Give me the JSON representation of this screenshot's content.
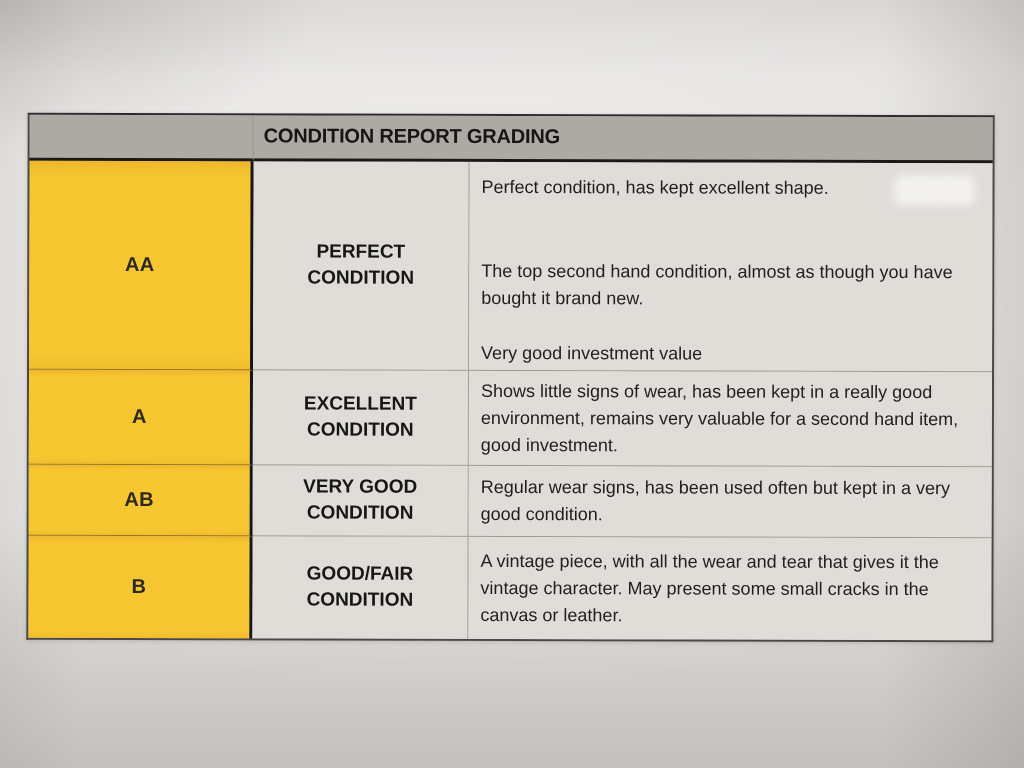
{
  "document": {
    "type": "photographed-printed-table",
    "table": {
      "title": "CONDITION REPORT GRADING",
      "columns": [
        "grade",
        "condition_name",
        "description"
      ],
      "rows": [
        {
          "grade": "AA",
          "label_lines": [
            "PERFECT",
            "CONDITION"
          ],
          "paragraphs": [
            "Perfect condition, has kept excellent shape.",
            "The top second hand condition, almost as though you have bought it brand new.",
            "Very good investment value"
          ]
        },
        {
          "grade": "A",
          "label_lines": [
            "EXCELLENT",
            "CONDITION"
          ],
          "paragraphs": [
            "Shows little signs of wear, has been kept in a really good environment, remains very valuable for a second hand item, good investment."
          ]
        },
        {
          "grade": "AB",
          "label_lines": [
            "VERY GOOD",
            "CONDITION"
          ],
          "paragraphs": [
            "Regular wear signs, has been used often but kept in a very good condition."
          ]
        },
        {
          "grade": "B",
          "label_lines": [
            "GOOD/FAIR",
            "CONDITION"
          ],
          "paragraphs": [
            "A vintage piece, with all the wear and tear that gives it the vintage character. May present some small cracks in the canvas or leather."
          ]
        }
      ]
    },
    "colors": {
      "yellow": "#f6c631",
      "headerGray": "#ada9a3",
      "cellGray": "#e0ddd9",
      "paper": "#e5e3e1"
    }
  }
}
